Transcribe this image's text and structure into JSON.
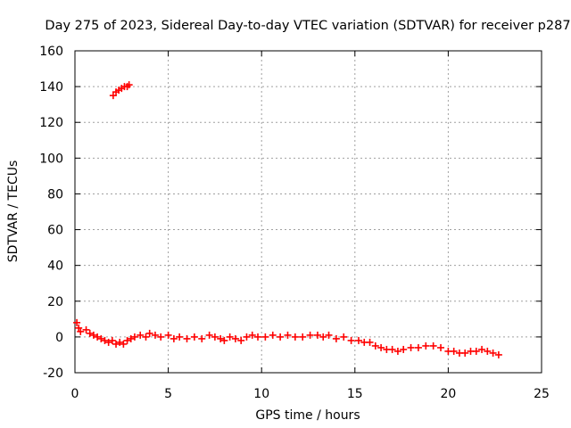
{
  "chart_data": {
    "type": "scatter",
    "title": "Day 275 of 2023, Sidereal Day-to-day VTEC variation (SDTVAR) for receiver p287",
    "xlabel": "GPS time / hours",
    "ylabel": "SDTVAR / TECUs",
    "xlim": [
      0,
      25
    ],
    "ylim": [
      -20,
      160
    ],
    "xticks": [
      "0",
      "5",
      "10",
      "15",
      "20",
      "25"
    ],
    "yticks": [
      "-20",
      "0",
      "20",
      "40",
      "60",
      "80",
      "100",
      "120",
      "140",
      "160"
    ],
    "xtick_values": [
      0,
      5,
      10,
      15,
      20,
      25
    ],
    "ytick_values": [
      -20,
      0,
      20,
      40,
      60,
      80,
      100,
      120,
      140,
      160
    ],
    "grid": true,
    "marker": "plus",
    "series": [
      {
        "name": "SDTVAR",
        "color": "#ff0000",
        "x": [
          0.1,
          0.2,
          0.3,
          0.6,
          0.8,
          1.0,
          1.2,
          1.4,
          1.6,
          1.8,
          2.0,
          2.2,
          2.4,
          2.6,
          2.8,
          3.0,
          3.2,
          3.5,
          3.8,
          4.0,
          4.3,
          4.6,
          5.0,
          5.3,
          5.6,
          6.0,
          6.4,
          6.8,
          7.2,
          7.5,
          7.8,
          8.0,
          8.3,
          8.6,
          8.9,
          9.2,
          9.5,
          9.8,
          10.2,
          10.6,
          11.0,
          11.4,
          11.8,
          12.2,
          12.6,
          13.0,
          13.3,
          13.6,
          14.0,
          14.4,
          14.8,
          15.2,
          15.5,
          15.8,
          16.1,
          16.4,
          16.7,
          17.0,
          17.3,
          17.6,
          18.0,
          18.4,
          18.8,
          19.2,
          19.6,
          20.0,
          20.3,
          20.6,
          20.9,
          21.2,
          21.5,
          21.8,
          22.1,
          22.4,
          22.7,
          2.05,
          2.2,
          2.35,
          2.5,
          2.65,
          2.8,
          2.9
        ],
        "y": [
          8,
          5,
          3,
          4,
          2,
          1,
          0,
          -1,
          -2,
          -3,
          -2,
          -4,
          -3,
          -4,
          -2,
          -1,
          0,
          1,
          0,
          2,
          1,
          0,
          1,
          -1,
          0,
          -1,
          0,
          -1,
          1,
          0,
          -1,
          -2,
          0,
          -1,
          -2,
          0,
          1,
          0,
          0,
          1,
          0,
          1,
          0,
          0,
          1,
          1,
          0,
          1,
          -1,
          0,
          -2,
          -2,
          -3,
          -3,
          -5,
          -6,
          -7,
          -7,
          -8,
          -7,
          -6,
          -6,
          -5,
          -5,
          -6,
          -8,
          -8,
          -9,
          -9,
          -8,
          -8,
          -7,
          -8,
          -9,
          -10,
          135,
          137,
          138,
          139,
          140,
          140,
          141
        ]
      }
    ]
  }
}
